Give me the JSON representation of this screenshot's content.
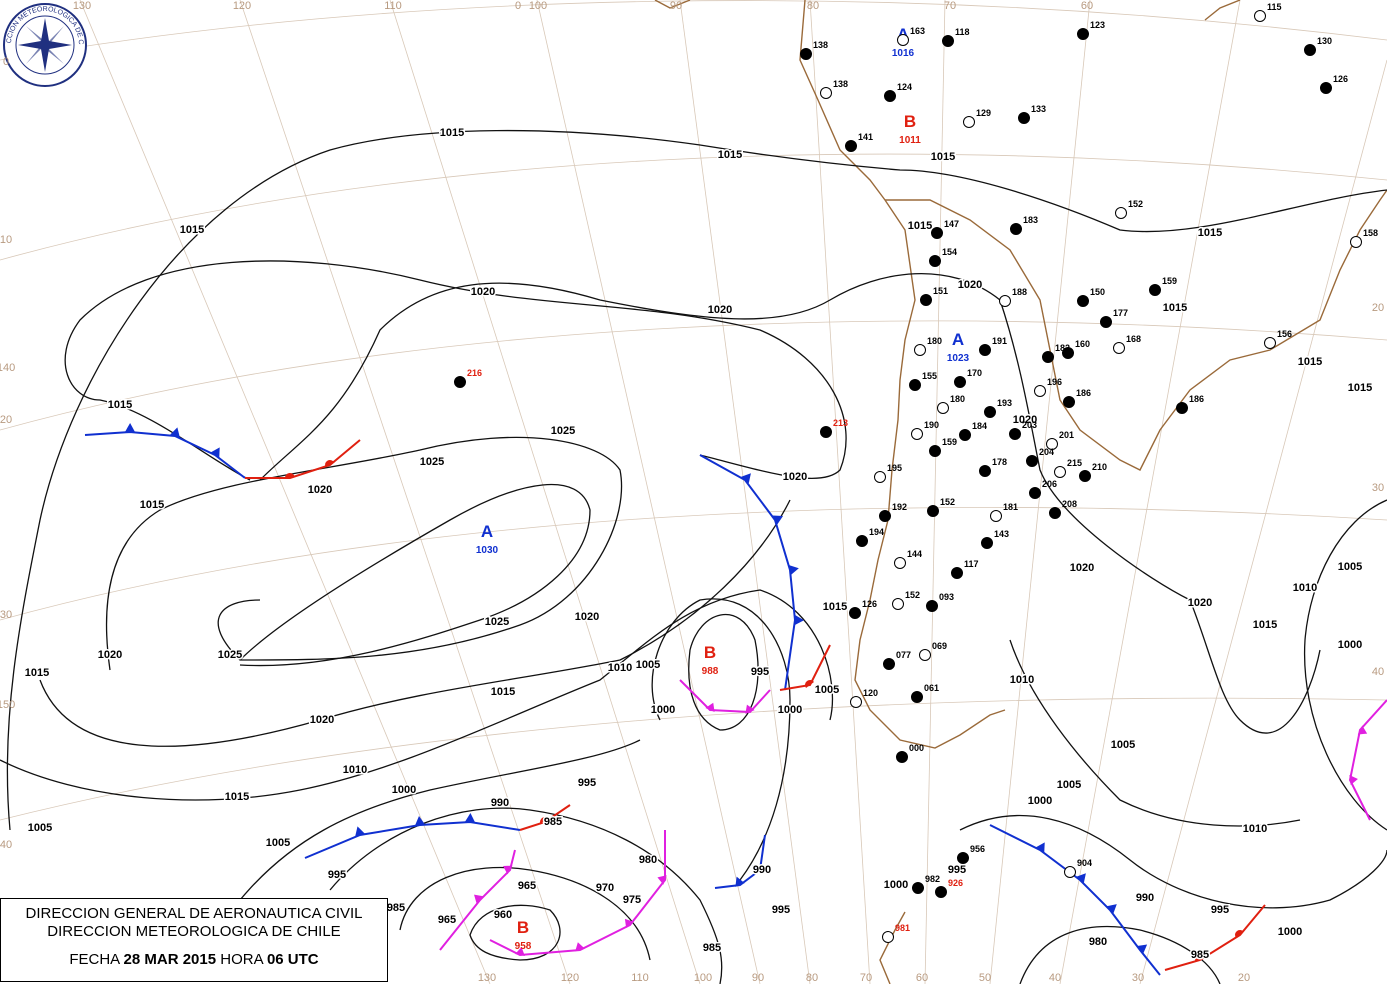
{
  "logo": {
    "text": "DIRECCION METEOROLOGICA DE CHILE"
  },
  "footer": {
    "line1": "DIRECCION GENERAL DE AERONAUTICA CIVIL",
    "line2": "DIRECCION METEOROLOGICA DE CHILE",
    "date_label": "FECHA",
    "date": "28 MAR 2015",
    "time_label": "HORA",
    "time": "06 UTC"
  },
  "pressure_centers": [
    {
      "letter": "A",
      "value": 1030,
      "color": "#1030d0"
    },
    {
      "letter": "A",
      "value": 1023,
      "color": "#1030d0"
    },
    {
      "letter": "A",
      "value": 1016,
      "color": "#1030d0"
    },
    {
      "letter": "B",
      "value": 988,
      "color": "#e02010"
    },
    {
      "letter": "B",
      "value": 958,
      "color": "#e02010"
    },
    {
      "letter": "B",
      "value": 1011,
      "color": "#e02010"
    }
  ],
  "isobar_labels": [
    1015,
    1015,
    1015,
    1015,
    1015,
    1015,
    1015,
    1015,
    1015,
    1015,
    1015,
    1015,
    1015,
    1015,
    1015,
    1015,
    1020,
    1020,
    1020,
    1020,
    1020,
    1020,
    1020,
    1020,
    1020,
    1020,
    1020,
    1025,
    1025,
    1025,
    1025,
    1010,
    1010,
    1010,
    1010,
    1010,
    1005,
    1005,
    1005,
    1005,
    1005,
    1005,
    1005,
    1000,
    1000,
    1000,
    1000,
    1000,
    1000,
    1000,
    995,
    995,
    995,
    995,
    995,
    995,
    990,
    990,
    990,
    985,
    985,
    985,
    985,
    980,
    980,
    975,
    970,
    965,
    965,
    960
  ],
  "graticule_labels": {
    "top": [
      "130",
      "120",
      "110",
      "0",
      "100",
      "90",
      "80",
      "70",
      "60"
    ],
    "left": [
      "0",
      "10",
      "140",
      "20",
      "30",
      "150",
      "40"
    ],
    "bottom": [
      "130",
      "120",
      "110",
      "100",
      "90",
      "80",
      "70",
      "60",
      "50",
      "40",
      "30",
      "20"
    ],
    "right": [
      "20",
      "30",
      "40"
    ]
  },
  "stations": [
    "163",
    "118",
    "123",
    "115",
    "138",
    "130",
    "138",
    "124",
    "126",
    "129",
    "133",
    "141",
    "152",
    "147",
    "183",
    "158",
    "154",
    "151",
    "188",
    "150",
    "177",
    "168",
    "159",
    "191",
    "180",
    "160",
    "182",
    "156",
    "155",
    "170",
    "196",
    "186",
    "186",
    "180",
    "193",
    "203",
    "190",
    "159",
    "184",
    "201",
    "204",
    "178",
    "215",
    "210",
    "206",
    "195",
    "192",
    "152",
    "181",
    "208",
    "194",
    "144",
    "143",
    "117",
    "152",
    "093",
    "126",
    "069",
    "077",
    "061",
    "120",
    "000",
    "956",
    "904",
    "982",
    "926",
    "981",
    "216",
    "213"
  ]
}
